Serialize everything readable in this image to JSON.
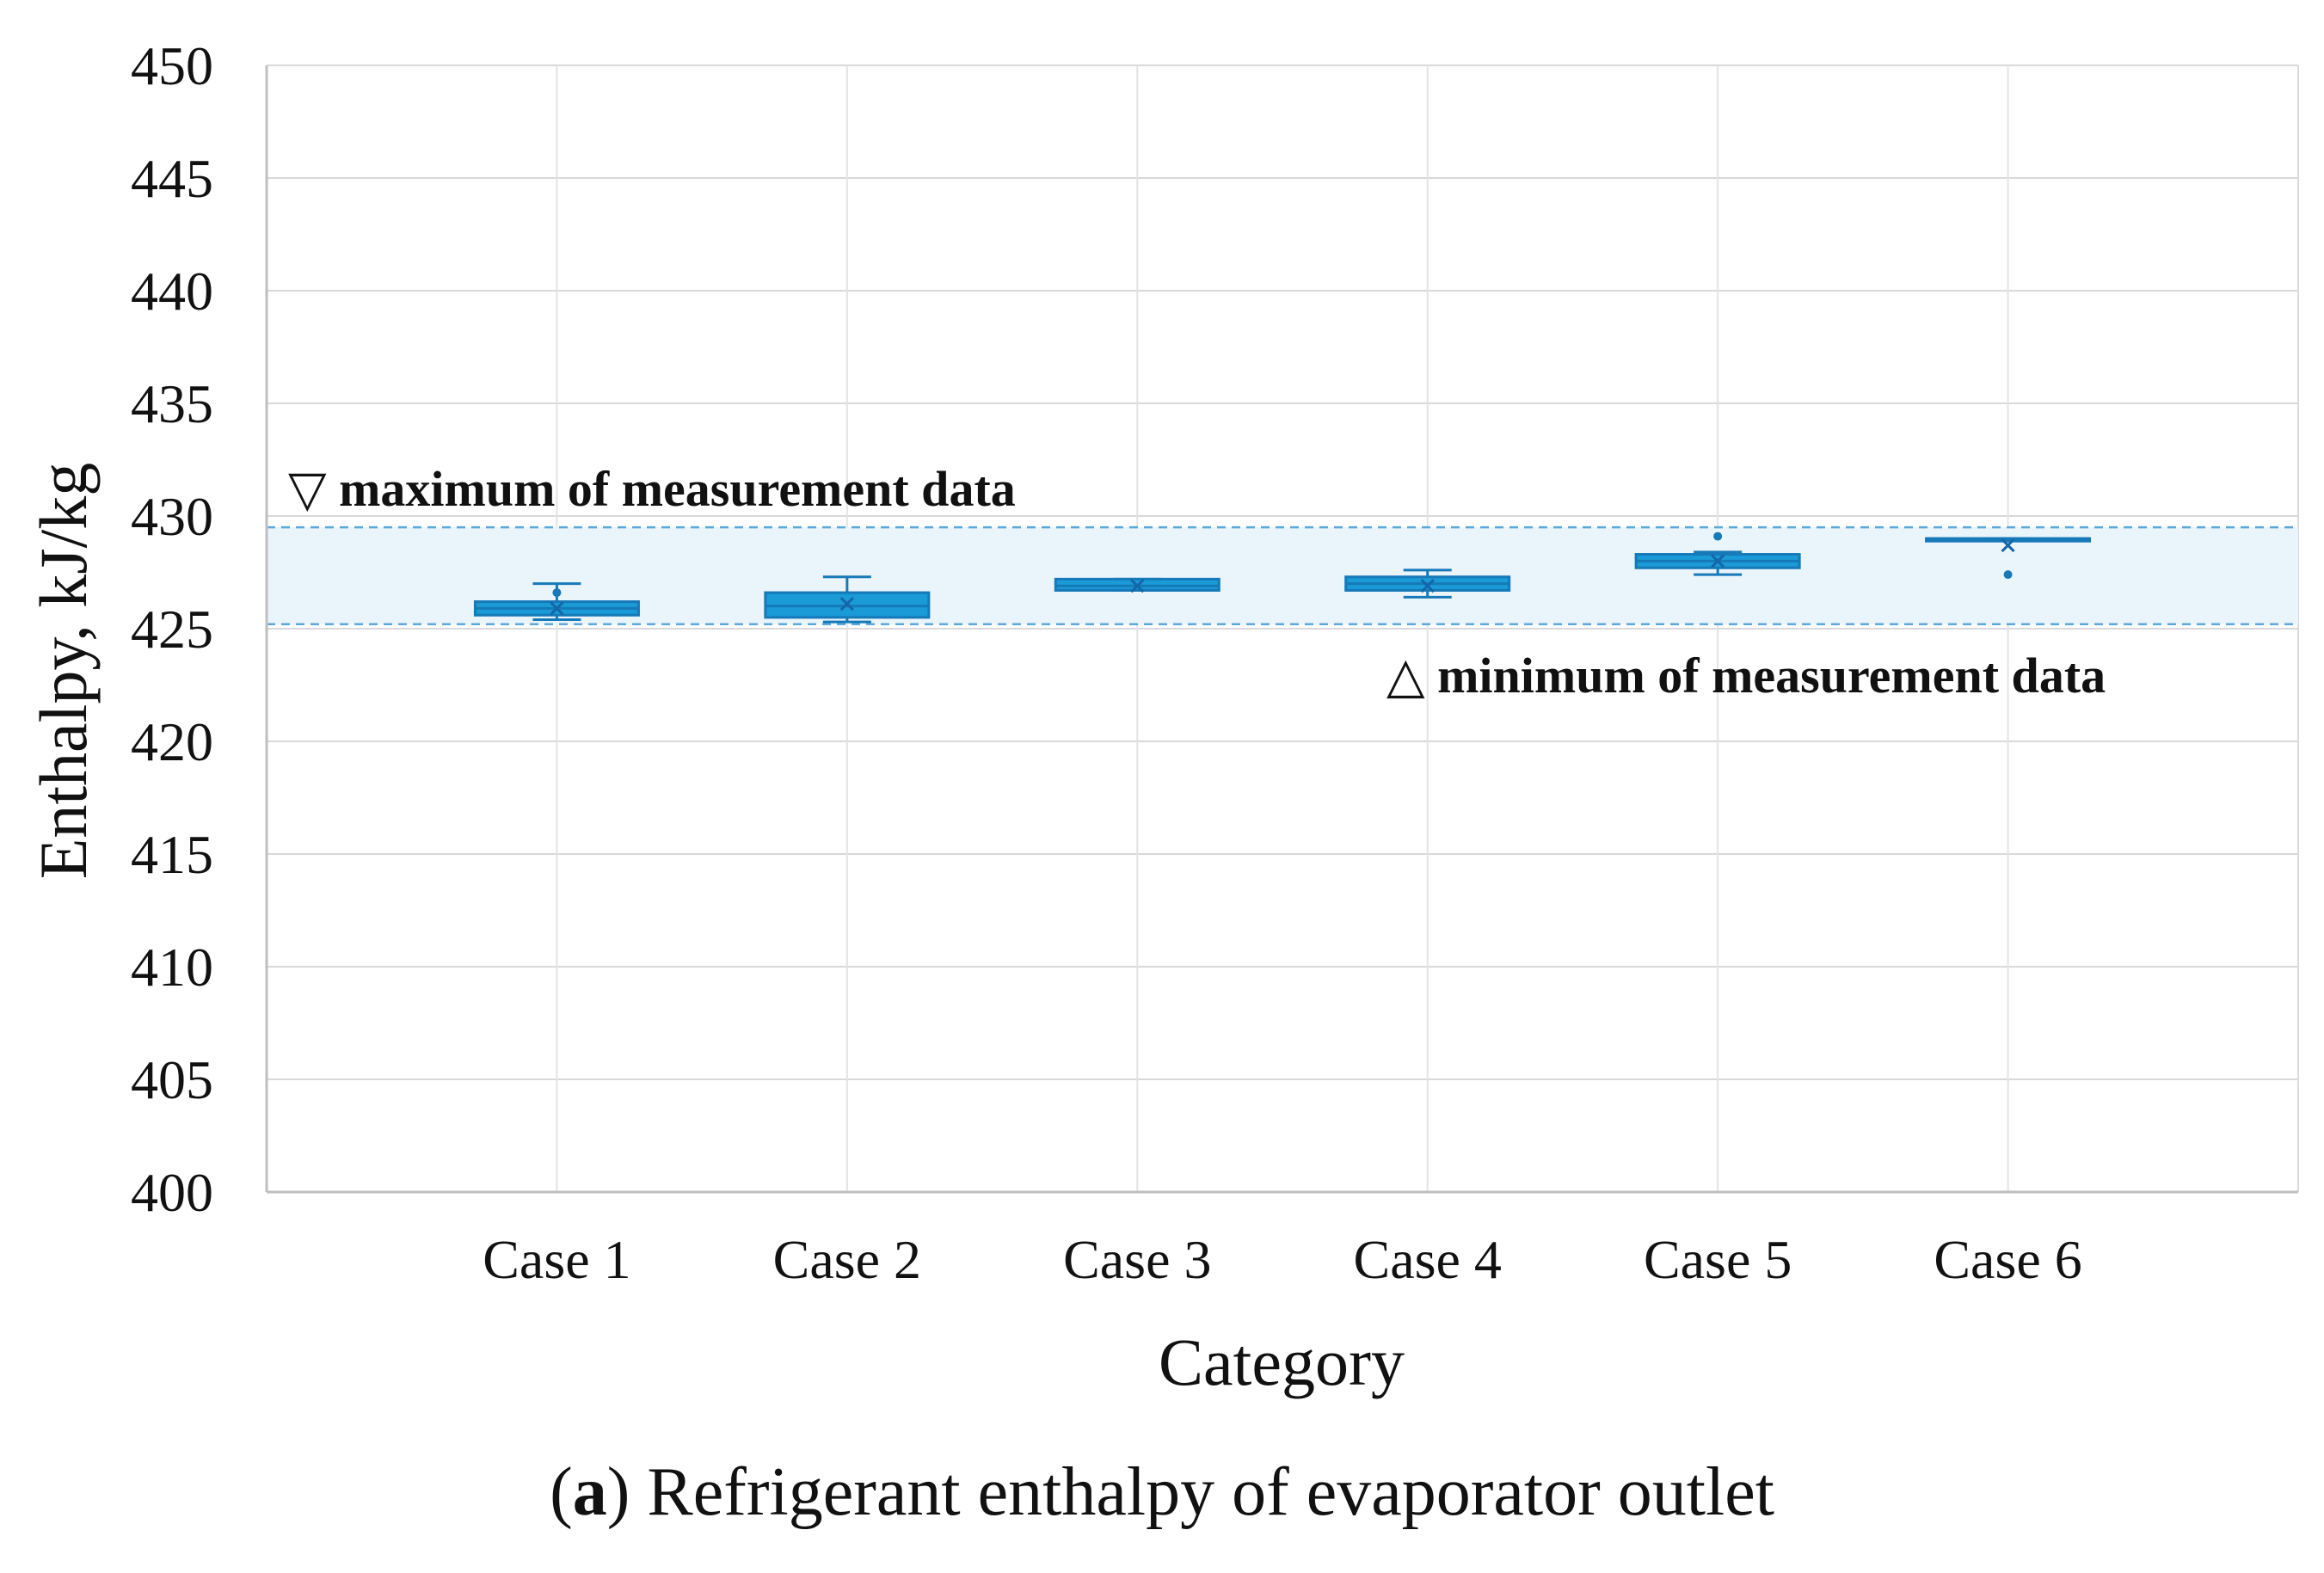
{
  "chart_data": {
    "type": "box",
    "ylabel": "Enthalpy, kJ/kg",
    "xlabel": "Category",
    "ylim": [
      400,
      450
    ],
    "yticks": [
      400,
      405,
      410,
      415,
      420,
      425,
      430,
      435,
      440,
      445,
      450
    ],
    "grid": true,
    "categories": [
      "Case 1",
      "Case 2",
      "Case 3",
      "Case 4",
      "Case 5",
      "Case 6"
    ],
    "boxes": [
      {
        "category": "Case 1",
        "whisker_low": 425.4,
        "q1": 425.6,
        "median": 425.9,
        "q3": 426.2,
        "whisker_high": 427.0,
        "mean": 425.9,
        "outliers": [
          426.6
        ]
      },
      {
        "category": "Case 2",
        "whisker_low": 425.3,
        "q1": 425.5,
        "median": 426.0,
        "q3": 426.6,
        "whisker_high": 427.3,
        "mean": 426.1,
        "outliers": []
      },
      {
        "category": "Case 3",
        "whisker_low": 426.7,
        "q1": 426.7,
        "median": 426.9,
        "q3": 427.2,
        "whisker_high": 427.2,
        "mean": 426.9,
        "outliers": []
      },
      {
        "category": "Case 4",
        "whisker_low": 426.4,
        "q1": 426.7,
        "median": 427.0,
        "q3": 427.3,
        "whisker_high": 427.6,
        "mean": 426.9,
        "outliers": []
      },
      {
        "category": "Case 5",
        "whisker_low": 427.4,
        "q1": 427.7,
        "median": 428.0,
        "q3": 428.3,
        "whisker_high": 428.4,
        "mean": 428.0,
        "outliers": [
          429.1
        ]
      },
      {
        "category": "Case 6",
        "whisker_low": 429.0,
        "q1": 429.0,
        "median": 429.0,
        "q3": 429.0,
        "whisker_high": 429.0,
        "mean": 428.7,
        "outliers": [
          427.4
        ]
      }
    ],
    "band": {
      "min": 425.2,
      "max": 429.5
    },
    "band_labels": {
      "max": "▽ maximum of measurement data",
      "min": "△ minimum of measurement data"
    },
    "colors": {
      "box": "#1a9ad6",
      "box_edge": "#1679b8",
      "band": "#eaf4fb",
      "band_line": "#5aa8dc",
      "grid": "#d9d9d9",
      "axis": "#bfbfbf"
    }
  },
  "caption": {
    "letter": "a",
    "text": " Refrigerant enthalpy of evaporator outlet"
  }
}
